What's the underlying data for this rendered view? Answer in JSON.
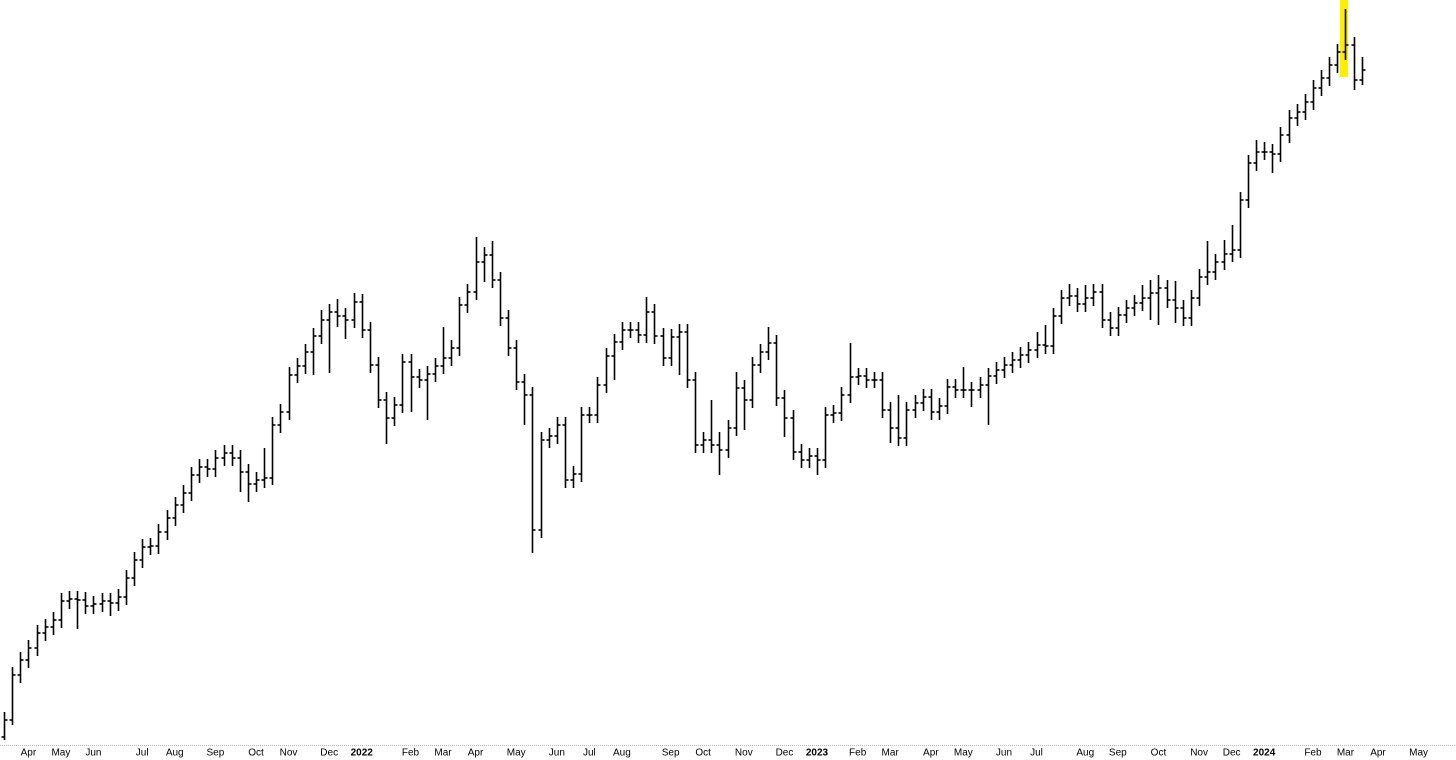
{
  "chart_data": {
    "type": "ohlc",
    "color": "#000000",
    "ylim": [
      0,
      74.5
    ],
    "categories": [
      null,
      null,
      null,
      "Apr",
      null,
      null,
      null,
      "May",
      null,
      null,
      null,
      "Jun",
      null,
      null,
      null,
      null,
      null,
      "Jul",
      null,
      null,
      null,
      "Aug",
      null,
      null,
      null,
      null,
      "Sep",
      null,
      null,
      null,
      null,
      "Oct",
      null,
      null,
      null,
      "Nov",
      null,
      null,
      null,
      null,
      "Dec",
      null,
      null,
      null,
      "2022",
      null,
      null,
      null,
      null,
      null,
      "Feb",
      null,
      null,
      null,
      "Mar",
      null,
      null,
      null,
      "Apr",
      null,
      null,
      null,
      null,
      "May",
      null,
      null,
      null,
      null,
      "Jun",
      null,
      null,
      null,
      "Jul",
      null,
      null,
      null,
      "Aug",
      null,
      null,
      null,
      null,
      null,
      "Sep",
      null,
      null,
      null,
      "Oct",
      null,
      null,
      null,
      null,
      "Nov",
      null,
      null,
      null,
      null,
      "Dec",
      null,
      null,
      null,
      "2023",
      null,
      null,
      null,
      null,
      "Feb",
      null,
      null,
      null,
      "Mar",
      null,
      null,
      null,
      null,
      "Apr",
      null,
      null,
      null,
      "May",
      null,
      null,
      null,
      null,
      "Jun",
      null,
      null,
      null,
      "Jul",
      null,
      null,
      null,
      null,
      null,
      "Aug",
      null,
      null,
      null,
      "Sep",
      null,
      null,
      null,
      null,
      "Oct",
      null,
      null,
      null,
      null,
      "Nov",
      null,
      null,
      null,
      "Dec",
      null,
      null,
      null,
      "2024",
      null,
      null,
      null,
      null,
      null,
      "Feb",
      null,
      null,
      null,
      "Mar",
      null,
      null,
      null,
      "Apr",
      null,
      null,
      null,
      null,
      "May"
    ],
    "open": [
      0.8,
      2.5,
      7.0,
      8.5,
      9.7,
      11.2,
      11.8,
      12.5,
      14.4,
      14.6,
      14.5,
      13.9,
      14.1,
      14.4,
      14.2,
      14.8,
      16.7,
      18.5,
      19.8,
      19.9,
      21.3,
      22.7,
      24.0,
      25.2,
      27.0,
      27.8,
      27.6,
      28.7,
      29.2,
      28.7,
      27.3,
      26.1,
      26.5,
      26.7,
      32.0,
      33.3,
      37.0,
      37.9,
      39.3,
      40.9,
      42.5,
      43.3,
      42.9,
      42.5,
      44.3,
      41.5,
      38.0,
      34.5,
      32.7,
      34.0,
      38.3,
      36.8,
      36.5,
      37.1,
      37.9,
      38.7,
      39.7,
      44.0,
      45.3,
      48.3,
      49.0,
      46.5,
      42.7,
      39.7,
      36.3,
      35.0,
      21.5,
      30.5,
      30.9,
      32.0,
      26.5,
      27.1,
      33.0,
      33.0,
      36.0,
      38.9,
      40.3,
      41.5,
      41.5,
      41.0,
      43.3,
      40.9,
      38.7,
      40.8,
      41.3,
      36.5,
      30.0,
      30.5,
      30.0,
      29.5,
      31.7,
      35.7,
      34.5,
      38.0,
      39.3,
      40.2,
      34.7,
      32.7,
      29.3,
      28.5,
      28.9,
      28.5,
      33.0,
      33.2,
      35.0,
      36.8,
      36.9,
      36.5,
      36.5,
      33.5,
      31.7,
      30.7,
      33.5,
      34.2,
      34.8,
      33.3,
      33.9,
      35.8,
      35.5,
      35.5,
      35.5,
      36.0,
      36.9,
      37.5,
      38.0,
      38.5,
      39.0,
      39.5,
      40.0,
      39.9,
      42.9,
      44.7,
      44.9,
      44.1,
      44.7,
      45.3,
      42.5,
      41.7,
      43.0,
      43.7,
      44.2,
      44.7,
      45.2,
      45.7,
      44.5,
      43.7,
      42.7,
      44.7,
      46.8,
      47.3,
      48.3,
      49.1,
      49.5,
      54.5,
      58.2,
      59.3,
      59.3,
      59.1,
      61.0,
      62.7,
      63.3,
      64.3,
      65.7,
      66.7,
      68.0,
      69.3,
      70.0,
      66.5,
      null,
      null,
      null,
      null,
      null,
      null,
      null
    ],
    "high": [
      3.3,
      7.8,
      9.3,
      10.5,
      12.0,
      12.6,
      13.3,
      15.2,
      15.4,
      15.4,
      15.3,
      14.9,
      15.2,
      15.2,
      15.6,
      17.5,
      19.3,
      20.6,
      20.7,
      22.1,
      23.5,
      24.8,
      26.0,
      27.8,
      28.6,
      28.6,
      29.5,
      30.0,
      30.0,
      29.5,
      28.1,
      27.3,
      29.7,
      32.8,
      34.1,
      37.8,
      38.7,
      40.1,
      41.7,
      43.5,
      44.1,
      44.6,
      43.7,
      45.2,
      45.1,
      42.3,
      38.8,
      35.3,
      34.8,
      39.1,
      39.1,
      37.6,
      37.9,
      38.7,
      41.8,
      40.5,
      44.8,
      46.1,
      50.8,
      49.8,
      50.4,
      47.3,
      43.5,
      40.5,
      37.1,
      35.8,
      31.3,
      31.7,
      32.8,
      32.8,
      27.9,
      33.8,
      33.8,
      36.8,
      39.7,
      41.1,
      42.3,
      42.3,
      42.3,
      44.8,
      44.1,
      41.7,
      41.6,
      42.1,
      42.1,
      37.3,
      31.3,
      34.5,
      31.3,
      32.5,
      37.3,
      36.5,
      38.8,
      40.1,
      41.8,
      41.0,
      35.5,
      33.5,
      30.1,
      29.7,
      29.7,
      33.8,
      34.0,
      35.8,
      40.2,
      37.7,
      37.7,
      37.3,
      37.3,
      34.3,
      35.0,
      34.3,
      35.0,
      35.6,
      35.6,
      34.7,
      36.6,
      36.6,
      37.8,
      36.3,
      36.8,
      37.7,
      38.3,
      38.8,
      39.3,
      39.8,
      40.3,
      41.3,
      42.0,
      43.7,
      45.5,
      46.1,
      45.7,
      46.0,
      46.1,
      46.1,
      43.3,
      43.8,
      44.5,
      45.0,
      46.0,
      46.5,
      47.0,
      46.5,
      46.4,
      44.5,
      45.5,
      47.6,
      50.4,
      49.1,
      50.5,
      52.0,
      55.3,
      59.0,
      60.5,
      60.3,
      60.1,
      61.8,
      63.5,
      64.1,
      65.1,
      66.5,
      67.5,
      68.8,
      70.1,
      73.6,
      70.8,
      68.8,
      null,
      null,
      null,
      null,
      null,
      null,
      null
    ],
    "low": [
      0.5,
      2.0,
      6.2,
      7.7,
      8.9,
      10.4,
      11.0,
      11.7,
      13.6,
      11.6,
      13.1,
      13.1,
      13.3,
      12.9,
      13.4,
      14.0,
      15.9,
      17.7,
      19.0,
      19.1,
      20.5,
      21.9,
      23.2,
      24.4,
      26.2,
      26.8,
      26.8,
      27.9,
      27.9,
      25.3,
      24.3,
      25.3,
      25.7,
      26.0,
      31.2,
      32.5,
      36.2,
      37.1,
      37.0,
      40.1,
      37.2,
      41.8,
      40.6,
      41.7,
      40.7,
      37.2,
      33.7,
      30.1,
      31.9,
      33.2,
      33.3,
      35.7,
      32.5,
      36.3,
      37.1,
      37.9,
      38.9,
      43.2,
      44.5,
      46.3,
      45.7,
      41.9,
      38.9,
      35.5,
      32.0,
      19.2,
      20.7,
      29.7,
      30.1,
      25.7,
      25.7,
      26.3,
      32.2,
      32.2,
      35.2,
      36.5,
      39.5,
      40.7,
      40.2,
      40.2,
      40.1,
      37.9,
      37.9,
      37.0,
      35.7,
      29.2,
      29.2,
      29.2,
      27.0,
      28.7,
      30.9,
      31.5,
      33.7,
      37.2,
      38.5,
      33.9,
      30.8,
      28.5,
      27.7,
      27.7,
      27.0,
      27.7,
      32.2,
      32.4,
      34.2,
      36.0,
      35.7,
      35.7,
      32.7,
      30.2,
      29.9,
      29.9,
      32.7,
      33.4,
      32.5,
      32.5,
      33.1,
      34.7,
      34.7,
      33.8,
      34.7,
      32.0,
      36.1,
      36.7,
      37.2,
      37.7,
      38.2,
      38.7,
      39.1,
      39.1,
      42.1,
      43.9,
      43.3,
      43.3,
      43.9,
      41.7,
      40.9,
      40.9,
      42.2,
      42.9,
      43.4,
      42.5,
      42.0,
      43.7,
      42.2,
      41.9,
      41.9,
      43.9,
      46.0,
      46.5,
      47.5,
      48.3,
      48.7,
      53.7,
      57.4,
      58.5,
      57.2,
      58.3,
      60.2,
      61.9,
      62.5,
      63.5,
      64.9,
      65.9,
      67.2,
      68.5,
      65.5,
      66.0,
      null,
      null,
      null,
      null,
      null,
      null,
      null
    ],
    "close": [
      2.5,
      7.0,
      8.5,
      9.7,
      11.2,
      11.8,
      12.5,
      14.4,
      14.6,
      14.5,
      13.9,
      14.1,
      14.4,
      14.2,
      14.8,
      16.7,
      18.5,
      19.8,
      19.9,
      21.3,
      22.7,
      24.0,
      25.2,
      27.0,
      27.8,
      27.6,
      28.7,
      29.2,
      28.7,
      27.3,
      26.1,
      26.5,
      26.7,
      32.0,
      33.3,
      37.0,
      37.9,
      39.3,
      40.9,
      42.5,
      43.3,
      42.9,
      42.5,
      44.3,
      41.5,
      38.0,
      34.5,
      32.7,
      34.0,
      38.3,
      36.8,
      36.5,
      37.1,
      37.9,
      38.7,
      39.7,
      44.0,
      45.3,
      48.3,
      49.0,
      46.5,
      42.7,
      39.7,
      36.3,
      35.0,
      21.5,
      30.5,
      30.9,
      32.0,
      26.5,
      27.1,
      33.0,
      33.0,
      36.0,
      38.9,
      40.3,
      41.5,
      41.5,
      41.0,
      43.3,
      40.9,
      38.7,
      40.8,
      41.3,
      36.5,
      30.0,
      30.5,
      30.0,
      29.5,
      31.7,
      35.7,
      34.5,
      38.0,
      39.3,
      40.2,
      34.7,
      32.7,
      29.3,
      28.5,
      28.9,
      28.5,
      33.0,
      33.2,
      35.0,
      36.8,
      36.9,
      36.5,
      36.5,
      33.5,
      31.7,
      30.7,
      33.5,
      34.2,
      34.8,
      33.3,
      33.9,
      35.8,
      35.5,
      35.5,
      35.5,
      36.0,
      36.9,
      37.5,
      38.0,
      38.5,
      39.0,
      39.5,
      40.0,
      39.9,
      42.9,
      44.7,
      44.9,
      44.1,
      44.7,
      45.3,
      42.5,
      41.7,
      43.0,
      43.7,
      44.2,
      44.7,
      45.2,
      45.7,
      44.5,
      43.7,
      42.7,
      44.7,
      46.8,
      47.3,
      48.3,
      49.1,
      49.5,
      54.5,
      58.2,
      59.3,
      59.3,
      59.1,
      61.0,
      62.7,
      63.3,
      64.3,
      65.7,
      66.7,
      68.0,
      69.3,
      70.0,
      66.5,
      67.5,
      null,
      null,
      null,
      null,
      null,
      null,
      null
    ]
  }
}
